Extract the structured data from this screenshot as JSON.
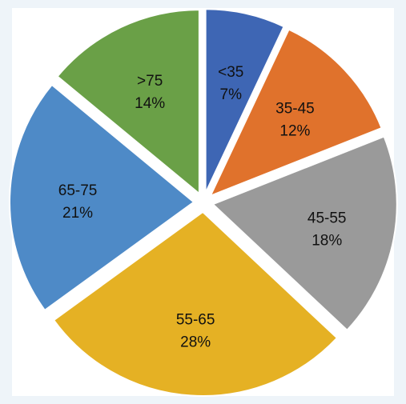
{
  "chart_data": {
    "type": "pie",
    "title": "",
    "slices": [
      {
        "label": "<35",
        "value": 7,
        "percent_label": "7%",
        "color": "#3e66b4"
      },
      {
        "label": "35-45",
        "value": 12,
        "percent_label": "12%",
        "color": "#e0722c"
      },
      {
        "label": "45-55",
        "value": 18,
        "percent_label": "18%",
        "color": "#9a9a9a"
      },
      {
        "label": "55-65",
        "value": 28,
        "percent_label": "28%",
        "color": "#e5b124"
      },
      {
        "label": "65-75",
        "value": 21,
        "percent_label": "21%",
        "color": "#4e8ac7"
      },
      {
        "label": ">75",
        "value": 14,
        "percent_label": "14%",
        "color": "#6aa047"
      }
    ],
    "start_angle_deg": 0,
    "direction": "clockwise",
    "exploded": true,
    "legend": "none",
    "background": "#eef4f9",
    "panel_color": "#ffffff"
  }
}
